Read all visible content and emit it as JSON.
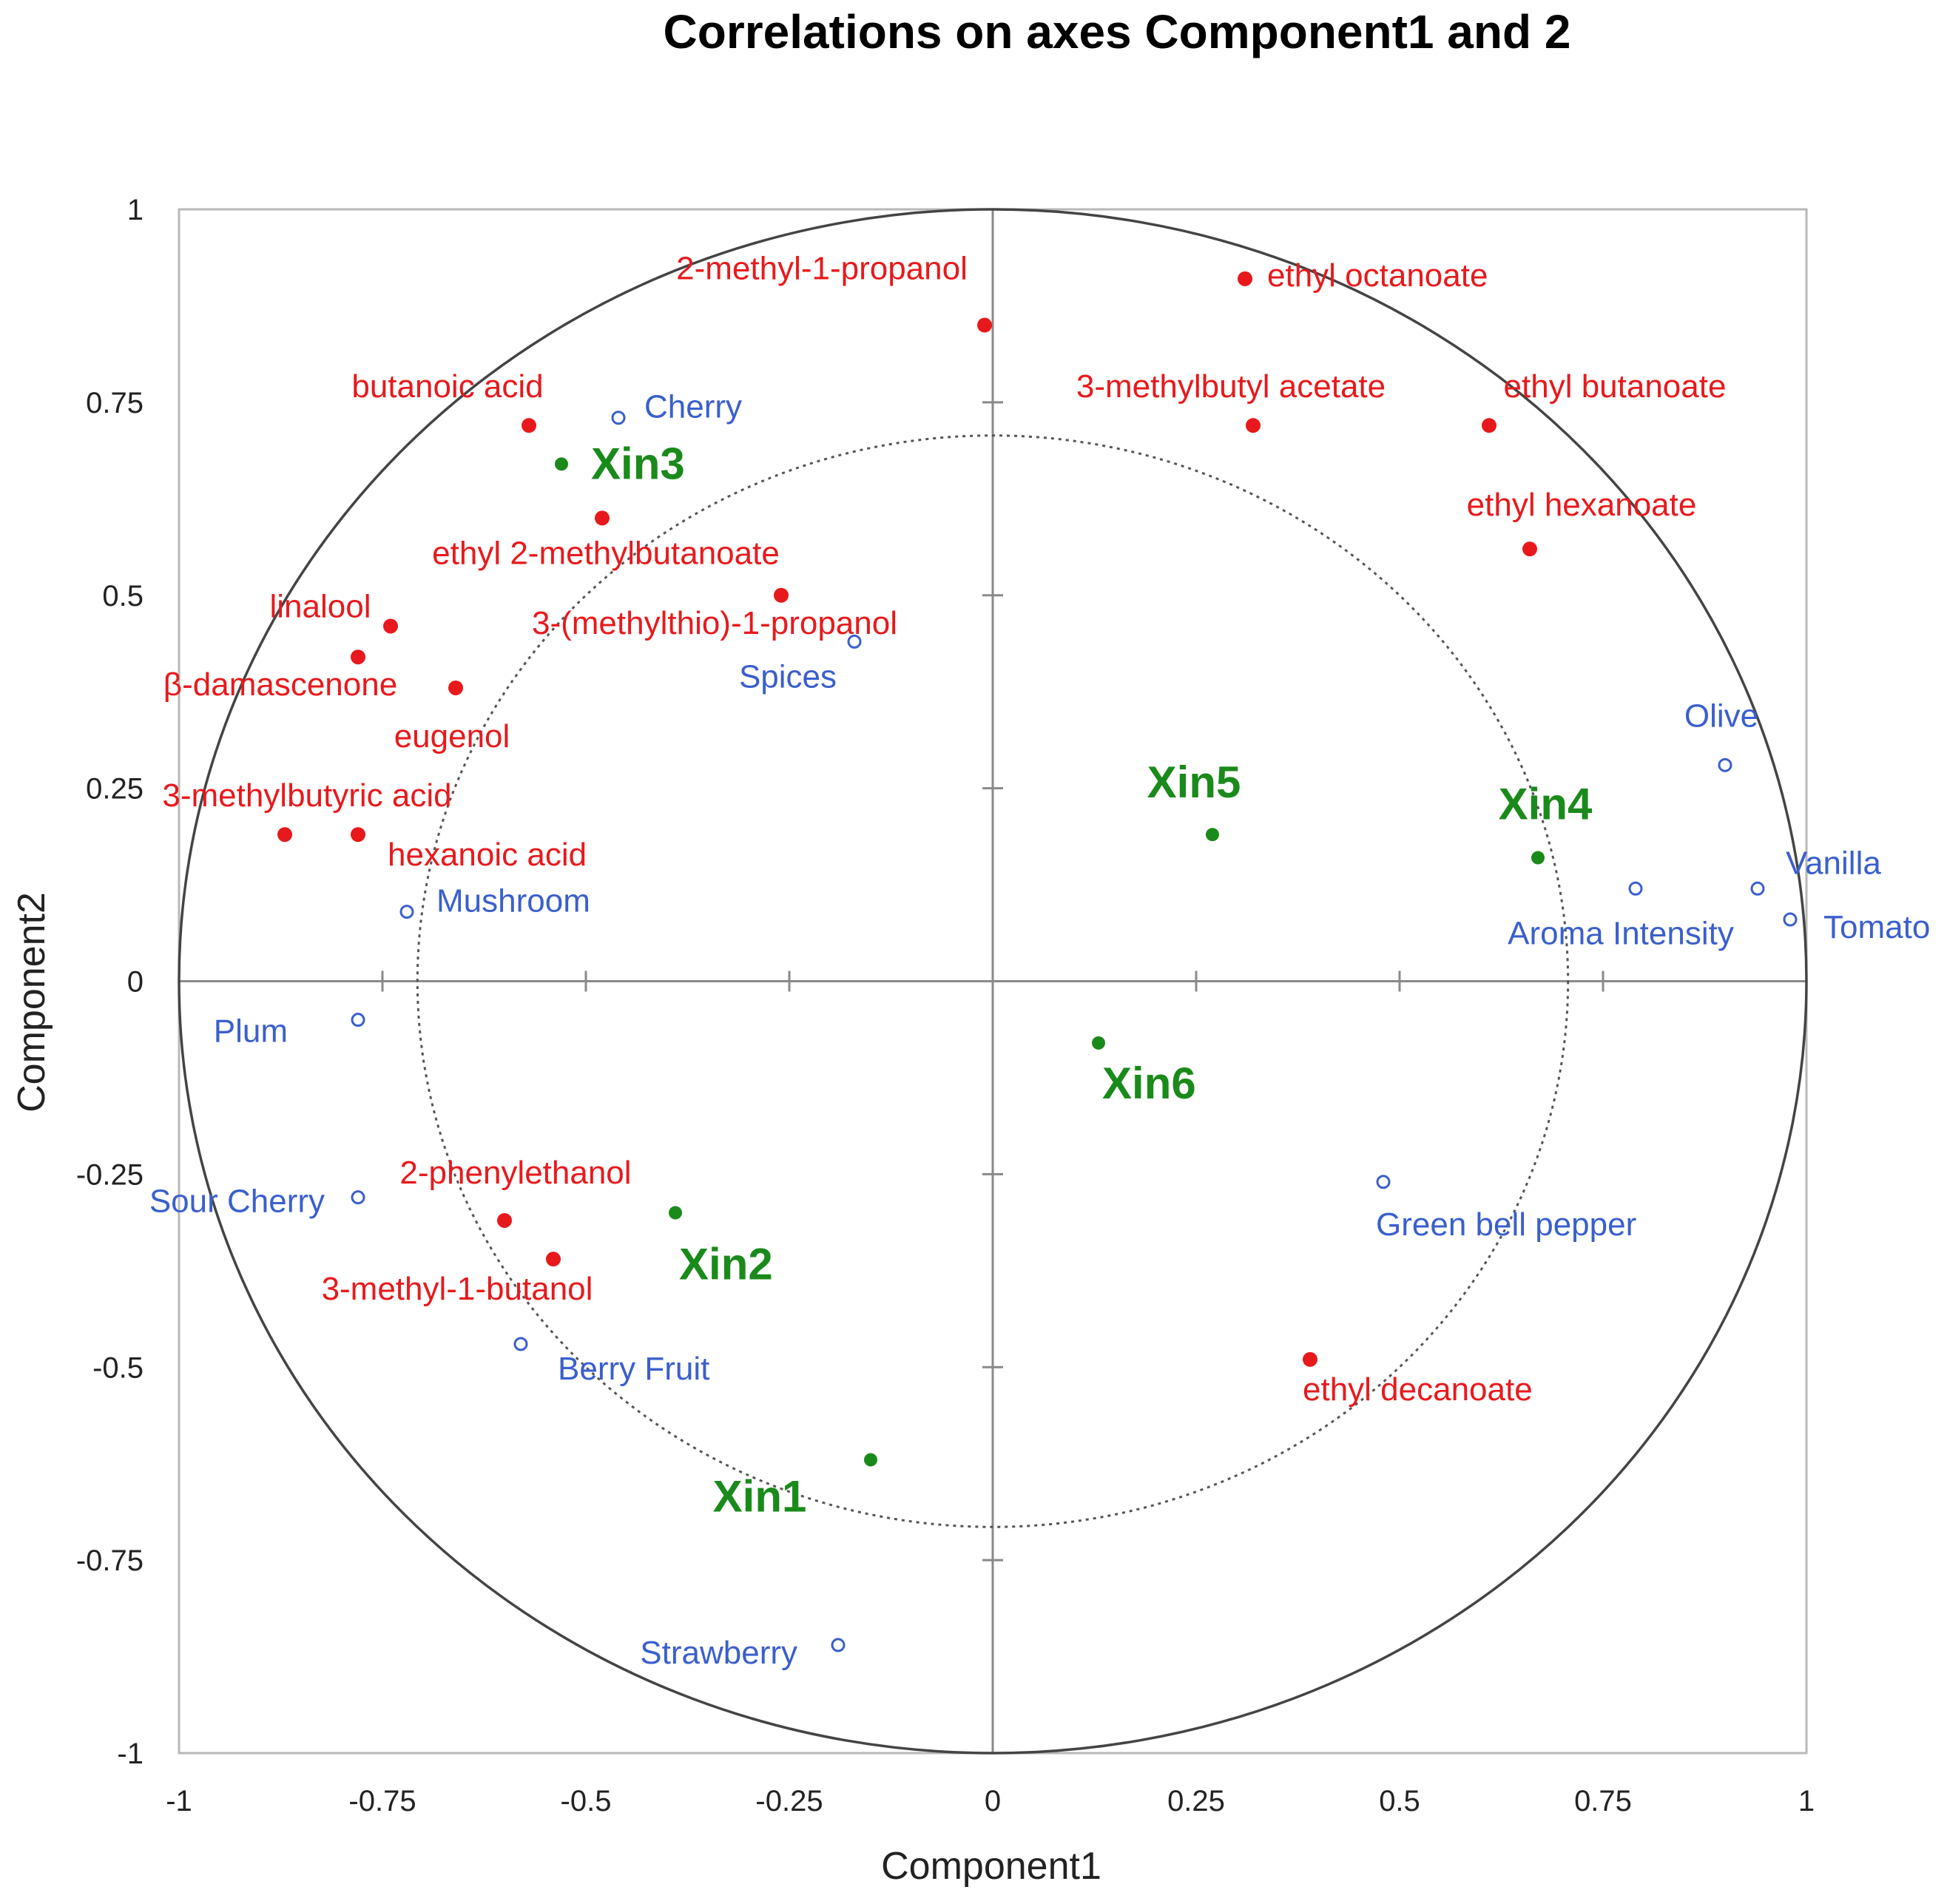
{
  "chart_data": {
    "type": "scatter",
    "title": "Correlations on axes Component1 and 2",
    "xlabel": "Component1",
    "ylabel": "Component2",
    "xlim": [
      -1,
      1
    ],
    "ylim": [
      -1,
      1
    ],
    "x_ticks": [
      -1,
      -0.75,
      -0.5,
      -0.25,
      0,
      0.25,
      0.5,
      0.75,
      1
    ],
    "y_ticks": [
      -1,
      -0.75,
      -0.5,
      -0.25,
      0,
      0.25,
      0.5,
      0.75,
      1
    ],
    "x_tick_labels": [
      "-1",
      "-0.75",
      "-0.5",
      "-0.25",
      "0",
      "0.25",
      "0.5",
      "0.75",
      "1"
    ],
    "y_tick_labels": [
      "-1",
      "-0.75",
      "-0.5",
      "-0.25",
      "0",
      "0.25",
      "0.5",
      "0.75",
      "1"
    ],
    "circles": [
      {
        "radius": 1,
        "style": "solid"
      },
      {
        "radius": 0.707,
        "style": "dotted"
      }
    ],
    "colors": {
      "volatiles": "#e8191c",
      "sensory": "#3a5fcd",
      "wines": "#1a8a1a"
    },
    "series": [
      {
        "marker": "filled-red",
        "points": [
          {
            "label": "2-methyl-1-propanol",
            "x": -0.01,
            "y": 0.85
          },
          {
            "label": "ethyl octanoate",
            "x": 0.31,
            "y": 0.91
          },
          {
            "label": "butanoic acid",
            "x": -0.57,
            "y": 0.72
          },
          {
            "label": "3-methylbutyl acetate",
            "x": 0.32,
            "y": 0.72
          },
          {
            "label": "ethyl butanoate",
            "x": 0.61,
            "y": 0.72
          },
          {
            "label": "ethyl 2-methylbutanoate",
            "x": -0.48,
            "y": 0.6
          },
          {
            "label": "ethyl hexanoate",
            "x": 0.66,
            "y": 0.56
          },
          {
            "label": "3-(methylthio)-1-propanol",
            "x": -0.26,
            "y": 0.5
          },
          {
            "label": "linalool",
            "x": -0.74,
            "y": 0.46
          },
          {
            "label": "β-damascenone",
            "x": -0.78,
            "y": 0.42
          },
          {
            "label": "eugenol",
            "x": -0.66,
            "y": 0.38
          },
          {
            "label": "3-methylbutyric acid",
            "x": -0.87,
            "y": 0.19
          },
          {
            "label": "hexanoic acid",
            "x": -0.78,
            "y": 0.19
          },
          {
            "label": "2-phenylethanol",
            "x": -0.6,
            "y": -0.31
          },
          {
            "label": "3-methyl-1-butanol",
            "x": -0.54,
            "y": -0.36
          },
          {
            "label": "ethyl decanoate",
            "x": 0.39,
            "y": -0.49
          }
        ]
      },
      {
        "marker": "open-blue",
        "points": [
          {
            "label": "Cherry",
            "x": -0.46,
            "y": 0.73
          },
          {
            "label": "Spices",
            "x": -0.17,
            "y": 0.44
          },
          {
            "label": "Olive",
            "x": 0.9,
            "y": 0.28
          },
          {
            "label": "Vanilla",
            "x": 0.94,
            "y": 0.12
          },
          {
            "label": "Aroma Intensity",
            "x": 0.79,
            "y": 0.12
          },
          {
            "label": "Tomato",
            "x": 0.98,
            "y": 0.08
          },
          {
            "label": "Mushroom",
            "x": -0.72,
            "y": 0.09
          },
          {
            "label": "Plum",
            "x": -0.78,
            "y": -0.05
          },
          {
            "label": "Sour Cherry",
            "x": -0.78,
            "y": -0.28
          },
          {
            "label": "Green bell pepper",
            "x": 0.48,
            "y": -0.26
          },
          {
            "label": "Berry Fruit",
            "x": -0.58,
            "y": -0.47
          },
          {
            "label": "Strawberry",
            "x": -0.19,
            "y": -0.86
          }
        ]
      },
      {
        "marker": "filled-green",
        "points": [
          {
            "label": "Xin3",
            "x": -0.53,
            "y": 0.67
          },
          {
            "label": "Xin5",
            "x": 0.27,
            "y": 0.19
          },
          {
            "label": "Xin4",
            "x": 0.67,
            "y": 0.16
          },
          {
            "label": "Xin6",
            "x": 0.13,
            "y": -0.08
          },
          {
            "label": "Xin2",
            "x": -0.39,
            "y": -0.3
          },
          {
            "label": "Xin1",
            "x": -0.15,
            "y": -0.62
          }
        ]
      }
    ]
  }
}
